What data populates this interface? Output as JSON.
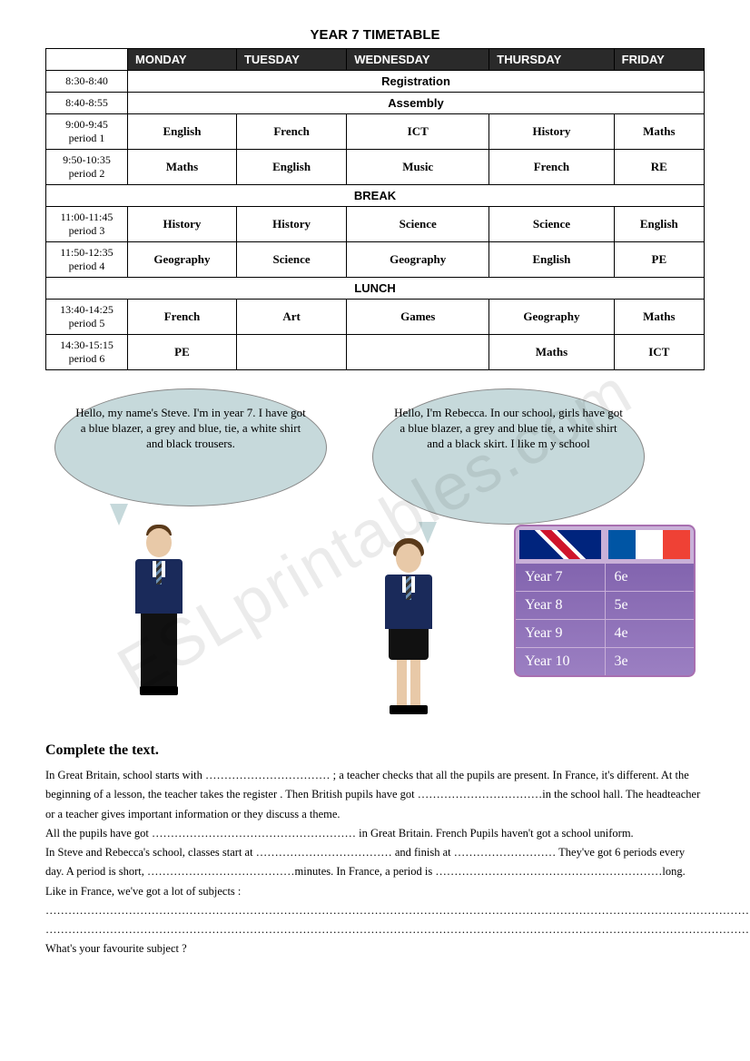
{
  "title_bold": "YEAR 7",
  "title_rest": " TIMETABLE",
  "headers": [
    "",
    "MONDAY",
    "TUESDAY",
    "WEDNESDAY",
    "THURSDAY",
    "FRIDAY"
  ],
  "rows": [
    {
      "time": "8:30-8:40",
      "merged": "Registration"
    },
    {
      "time": "8:40-8:55",
      "merged": "Assembly"
    },
    {
      "time": "9:00-9:45",
      "sub": "period 1",
      "cells": [
        "English",
        "French",
        "ICT",
        "History",
        "Maths"
      ]
    },
    {
      "time": "9:50-10:35",
      "sub": "period 2",
      "cells": [
        "Maths",
        "English",
        "Music",
        "French",
        "RE"
      ]
    },
    {
      "section": "BREAK"
    },
    {
      "time": "11:00-11:45",
      "sub": "period 3",
      "cells": [
        "History",
        "History",
        "Science",
        "Science",
        "English"
      ]
    },
    {
      "time": "11:50-12:35",
      "sub": "period 4",
      "cells": [
        "Geography",
        "Science",
        "Geography",
        "English",
        "PE"
      ]
    },
    {
      "section": "LUNCH"
    },
    {
      "time": "13:40-14:25",
      "sub": "period 5",
      "cells": [
        "French",
        "Art",
        "Games",
        "Geography",
        "Maths"
      ]
    },
    {
      "time": "14:30-15:15",
      "sub": "period 6",
      "cells": [
        "PE",
        "",
        "",
        "Maths",
        "ICT"
      ]
    }
  ],
  "bubble_steve": "Hello, my name's Steve. I'm in year 7. I\nhave got a blue blazer, a grey and blue,\ntie, a white shirt and black trousers.",
  "bubble_rebecca": "Hello, I'm Rebecca.\nIn our school, girls have got a blue blazer,\na grey and blue tie, a white shirt and a black skirt. I like m\ny school",
  "year_card": {
    "rows": [
      [
        "Year 7",
        "6e"
      ],
      [
        "Year 8",
        "5e"
      ],
      [
        "Year 9",
        "4e"
      ],
      [
        "Year 10",
        "3e"
      ]
    ]
  },
  "complete_title": "Complete the text.",
  "fill_lines": [
    "In Great Britain, school starts with …………………………… ; a teacher checks that all the pupils are present. In France, it's different. At the beginning of a lesson,  the teacher takes the register . Then British pupils have got ……………………………in the school hall. The headteacher or a teacher gives important information or they discuss a theme.",
    "All the pupils have got ……………………………………………… in Great Britain. French Pupils haven't got a school uniform.",
    "In Steve and Rebecca's school, classes start at ……………………………… and finish at ……………………… They've got 6 periods every day. A period is short, …………………………………minutes. In France, a period is ……………………………………………………long. Like in France, we've got a lot of subjects : …………………………………………………………………………………………………………………………………………………………………………",
    "……………………………………………………………………………………………………………………………………………………………………………………………………",
    "What's your favourite subject ?"
  ],
  "watermark": "ESLprintables.com"
}
